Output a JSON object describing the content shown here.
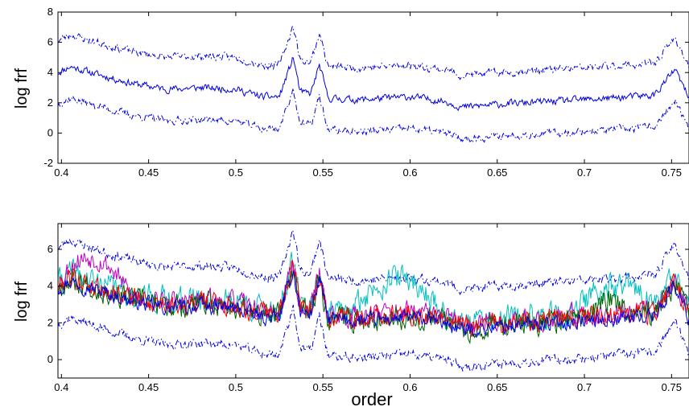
{
  "colors": {
    "blue": "#0000e0",
    "red": "#ff0000",
    "green": "#006400",
    "cyan": "#00c0c0",
    "magenta": "#c000c0",
    "axis": "#000000"
  },
  "chart_data": [
    {
      "type": "line",
      "title": "",
      "xlabel": "",
      "ylabel": "log frf",
      "xlim": [
        0.398,
        0.76
      ],
      "ylim": [
        -2,
        8
      ],
      "xticks": [
        0.4,
        0.45,
        0.5,
        0.55,
        0.6,
        0.65,
        0.7,
        0.75
      ],
      "xtick_labels": [
        "0.4",
        "0.45",
        "0.5",
        "0.55",
        "0.6",
        "0.65",
        "0.7",
        "0.75"
      ],
      "yticks": [
        -2,
        0,
        2,
        4,
        6,
        8
      ],
      "ytick_labels": [
        "-2",
        "0",
        "2",
        "4",
        "6",
        "8"
      ],
      "grid": false,
      "series": [
        {
          "style": "solid",
          "color": "#0000e0",
          "base": "mean",
          "offset": 0,
          "noise": 0.2,
          "seed": 11
        },
        {
          "style": "dashdot",
          "color": "#0000e0",
          "base": "mean",
          "offset": 2.1,
          "noise": 0.22,
          "seed": 23
        },
        {
          "style": "dashdot",
          "color": "#0000e0",
          "base": "mean",
          "offset": -2.1,
          "noise": 0.22,
          "seed": 37
        }
      ]
    },
    {
      "type": "line",
      "title": "",
      "xlabel": "order",
      "ylabel": "log frf",
      "xlim": [
        0.398,
        0.76
      ],
      "ylim": [
        -1,
        7.4
      ],
      "xticks": [
        0.4,
        0.45,
        0.5,
        0.55,
        0.6,
        0.65,
        0.7,
        0.75
      ],
      "xtick_labels": [
        "0.4",
        "0.45",
        "0.5",
        "0.55",
        "0.6",
        "0.65",
        "0.7",
        "0.75"
      ],
      "yticks": [
        0,
        2,
        4,
        6
      ],
      "ytick_labels": [
        "0",
        "2",
        "4",
        "6"
      ],
      "grid": false,
      "series": [
        {
          "style": "dashdot",
          "color": "#0000e0",
          "base": "mean",
          "offset": 2.1,
          "noise": 0.22,
          "seed": 23
        },
        {
          "style": "dashdot",
          "color": "#0000e0",
          "base": "mean",
          "offset": -2.1,
          "noise": 0.22,
          "seed": 37
        },
        {
          "style": "solid",
          "color": "#00c0c0",
          "base": "mean",
          "offset": 0.3,
          "noise": 0.6,
          "seed": 41,
          "bumps": [
            [
              0.565,
              0.62,
              1.8
            ],
            [
              0.69,
              0.745,
              1.3
            ]
          ]
        },
        {
          "style": "solid",
          "color": "#c000c0",
          "base": "mean",
          "offset": 0.2,
          "noise": 0.5,
          "seed": 53,
          "bumps": [
            [
              0.4,
              0.44,
              1.4
            ]
          ]
        },
        {
          "style": "solid",
          "color": "#006400",
          "base": "mean",
          "offset": 0.0,
          "noise": 0.55,
          "seed": 67,
          "bumps": [
            [
              0.7,
              0.73,
              0.9
            ]
          ]
        },
        {
          "style": "solid",
          "color": "#ff0000",
          "base": "mean",
          "offset": 0.1,
          "noise": 0.5,
          "seed": 79
        },
        {
          "style": "solid",
          "color": "#0000e0",
          "base": "mean",
          "offset": -0.1,
          "noise": 0.35,
          "seed": 97
        }
      ]
    }
  ],
  "mean_curve_knots": [
    [
      0.398,
      4.0
    ],
    [
      0.405,
      4.4
    ],
    [
      0.42,
      3.9
    ],
    [
      0.44,
      3.3
    ],
    [
      0.46,
      2.9
    ],
    [
      0.48,
      3.0
    ],
    [
      0.5,
      2.9
    ],
    [
      0.515,
      2.4
    ],
    [
      0.525,
      2.4
    ],
    [
      0.533,
      5.0
    ],
    [
      0.537,
      2.7
    ],
    [
      0.543,
      2.6
    ],
    [
      0.548,
      4.5
    ],
    [
      0.553,
      2.3
    ],
    [
      0.57,
      2.2
    ],
    [
      0.6,
      2.4
    ],
    [
      0.62,
      2.1
    ],
    [
      0.63,
      1.7
    ],
    [
      0.65,
      1.9
    ],
    [
      0.7,
      2.2
    ],
    [
      0.74,
      2.5
    ],
    [
      0.752,
      4.2
    ],
    [
      0.76,
      2.3
    ]
  ]
}
